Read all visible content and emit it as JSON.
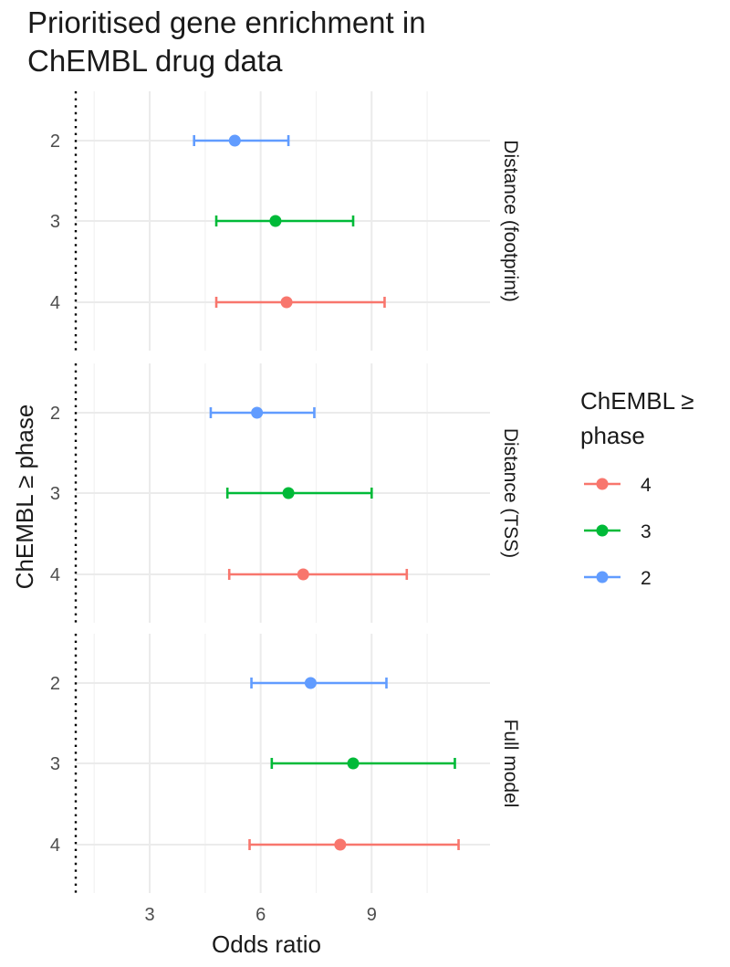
{
  "chart_data": {
    "type": "forest",
    "title_lines": [
      "Prioritised gene enrichment in",
      "ChEMBL drug data"
    ],
    "xlabel": "Odds ratio",
    "ylabel": "ChEMBL ≥ phase",
    "xlim": [
      1.0,
      12.2
    ],
    "x_ticks": [
      3,
      6,
      9
    ],
    "reference_line": 1,
    "y_categories": [
      "2",
      "3",
      "4"
    ],
    "legend": {
      "title_lines": [
        "ChEMBL ≥",
        "phase"
      ],
      "entries": [
        {
          "label": "4",
          "color": "#F8766D"
        },
        {
          "label": "3",
          "color": "#00BA38"
        },
        {
          "label": "2",
          "color": "#619CFF"
        }
      ]
    },
    "panels": [
      {
        "label": "Distance (footprint)",
        "points": [
          {
            "phase": "2",
            "or": 5.3,
            "lo": 4.2,
            "hi": 6.75
          },
          {
            "phase": "3",
            "or": 6.4,
            "lo": 4.8,
            "hi": 8.5
          },
          {
            "phase": "4",
            "or": 6.7,
            "lo": 4.8,
            "hi": 9.35
          }
        ]
      },
      {
        "label": "Distance (TSS)",
        "points": [
          {
            "phase": "2",
            "or": 5.9,
            "lo": 4.65,
            "hi": 7.45
          },
          {
            "phase": "3",
            "or": 6.75,
            "lo": 5.1,
            "hi": 9.0
          },
          {
            "phase": "4",
            "or": 7.15,
            "lo": 5.15,
            "hi": 9.95
          }
        ]
      },
      {
        "label": "Full model",
        "points": [
          {
            "phase": "2",
            "or": 7.35,
            "lo": 5.75,
            "hi": 9.4
          },
          {
            "phase": "3",
            "or": 8.5,
            "lo": 6.3,
            "hi": 11.25
          },
          {
            "phase": "4",
            "or": 8.15,
            "lo": 5.7,
            "hi": 11.35
          }
        ]
      }
    ]
  }
}
